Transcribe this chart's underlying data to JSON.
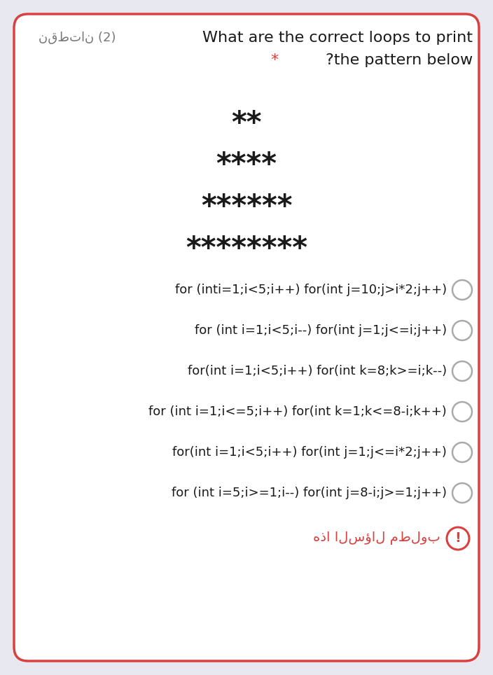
{
  "bg_color": "#e8e8f0",
  "card_color": "#ffffff",
  "border_color": "#d94040",
  "title_arabic": "نقطتان (2)",
  "title_english_line1": "What are the correct loops to print",
  "title_english_line2": "* ?the pattern below",
  "star_rows": [
    "**",
    "****",
    "******",
    "********"
  ],
  "options": [
    "for (inti=1;i<5;i++) for(int j=10;j>i*2;j++)",
    "for (int i=1;i<5;i--) for(int j=1;j<=i;j++)",
    "for(int i=1;i<5;i++) for(int k=8;k>=i;k--)",
    "for (int i=1;i<=5;i++) for(int k=1;k<=8-i;k++)",
    "for(int i=1;i<5;i++) for(int j=1;j<=i*2;j++)",
    "for (int i=5;i>=1;i--) for(int j=8-i;j>=1;j++)"
  ],
  "footer_arabic": "هذا السؤال مطلوب",
  "title_star_color": "#d94040",
  "star_color": "#1a1a1a",
  "text_color": "#1a1a1a",
  "arabic_title_color": "#777777",
  "footer_color": "#d94040",
  "circle_edge_color": "#aaaaaa",
  "exclamation_color": "#d94040",
  "option_fontsize": 13,
  "title_fontsize": 16,
  "star_fontsize": 30,
  "footer_fontsize": 14
}
